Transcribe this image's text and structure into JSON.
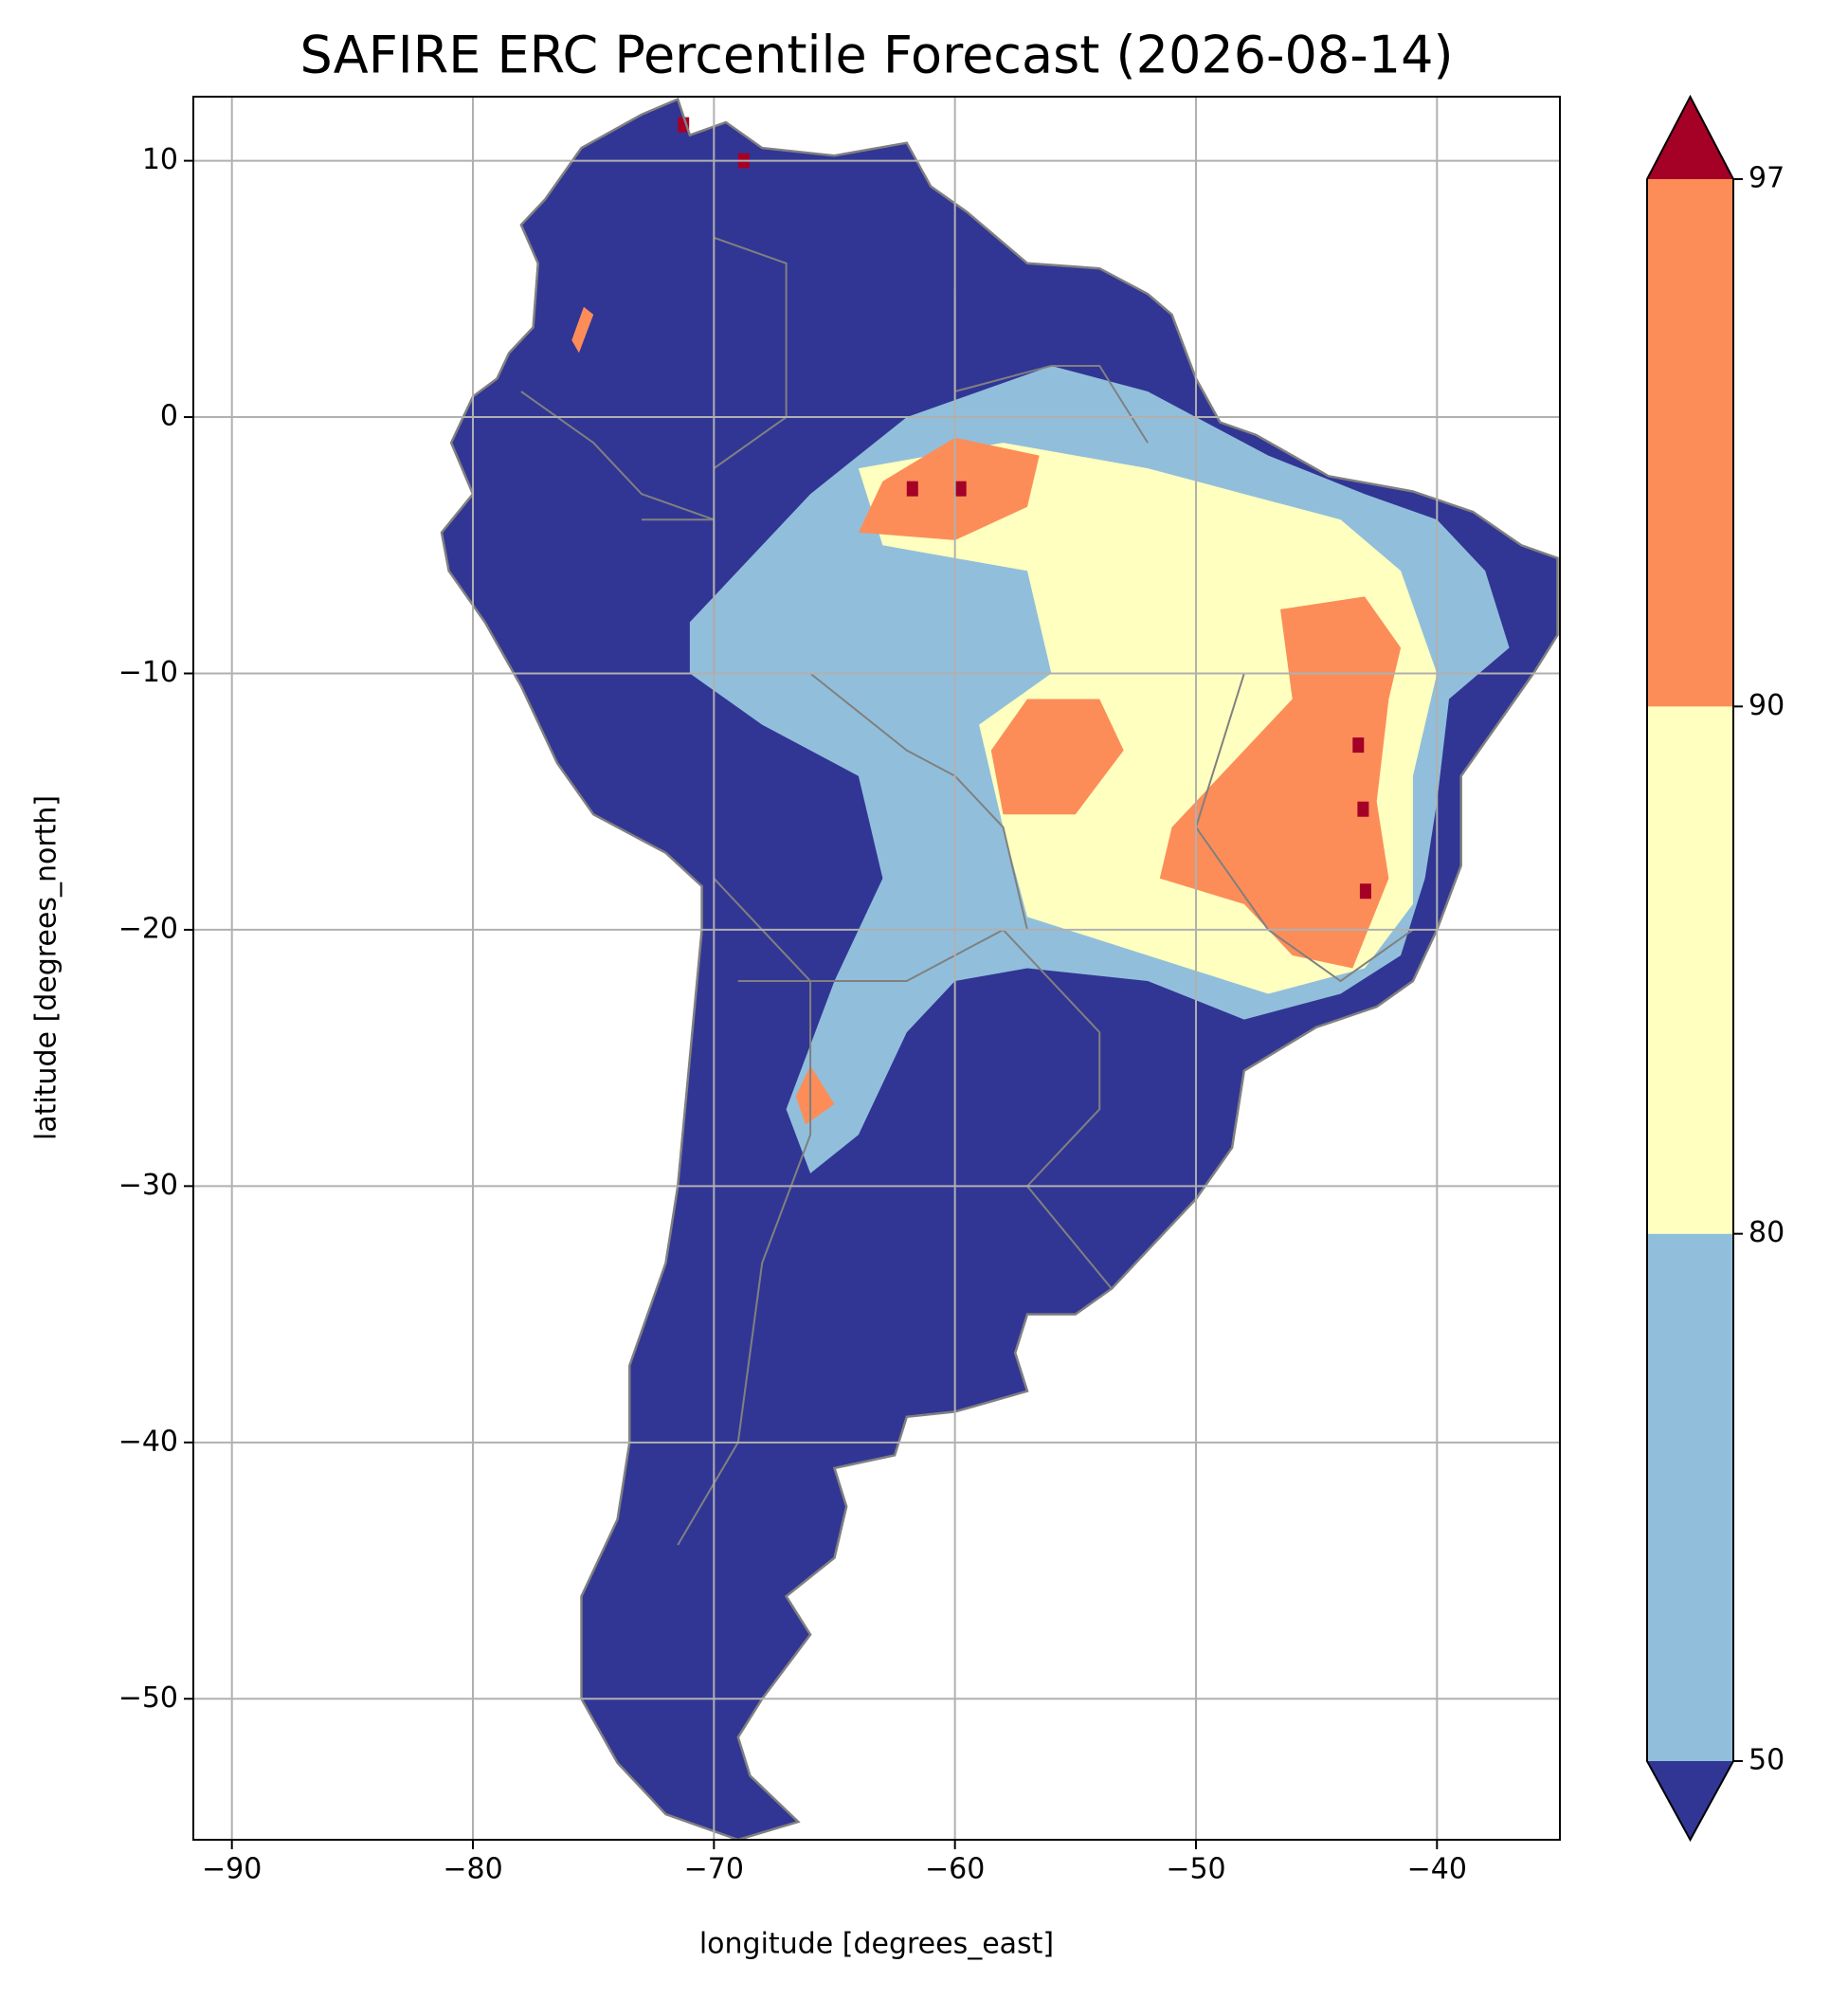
{
  "chart_data": {
    "type": "map",
    "title": "SAFIRE ERC Percentile Forecast (2026-08-14)",
    "x_label": "longitude [degrees_east]",
    "y_label": "latitude [degrees_north]",
    "xlim": [
      -91.6,
      -34.9
    ],
    "ylim": [
      -55.5,
      12.5
    ],
    "xticks": [
      {
        "value": -90,
        "label": "−90"
      },
      {
        "value": -80,
        "label": "−80"
      },
      {
        "value": -70,
        "label": "−70"
      },
      {
        "value": -60,
        "label": "−60"
      },
      {
        "value": -50,
        "label": "−50"
      },
      {
        "value": -40,
        "label": "−40"
      }
    ],
    "yticks": [
      {
        "value": -50,
        "label": "−50"
      },
      {
        "value": -40,
        "label": "−40"
      },
      {
        "value": -30,
        "label": "−30"
      },
      {
        "value": -20,
        "label": "−20"
      },
      {
        "value": -10,
        "label": "−10"
      },
      0,
      10
    ],
    "grid": true,
    "colorbar": {
      "levels": [
        50,
        80,
        90,
        97
      ],
      "colors": [
        "#313695",
        "#91bfdb",
        "#ffffbf",
        "#fc8d59",
        "#a50026"
      ],
      "extend": "both"
    }
  }
}
